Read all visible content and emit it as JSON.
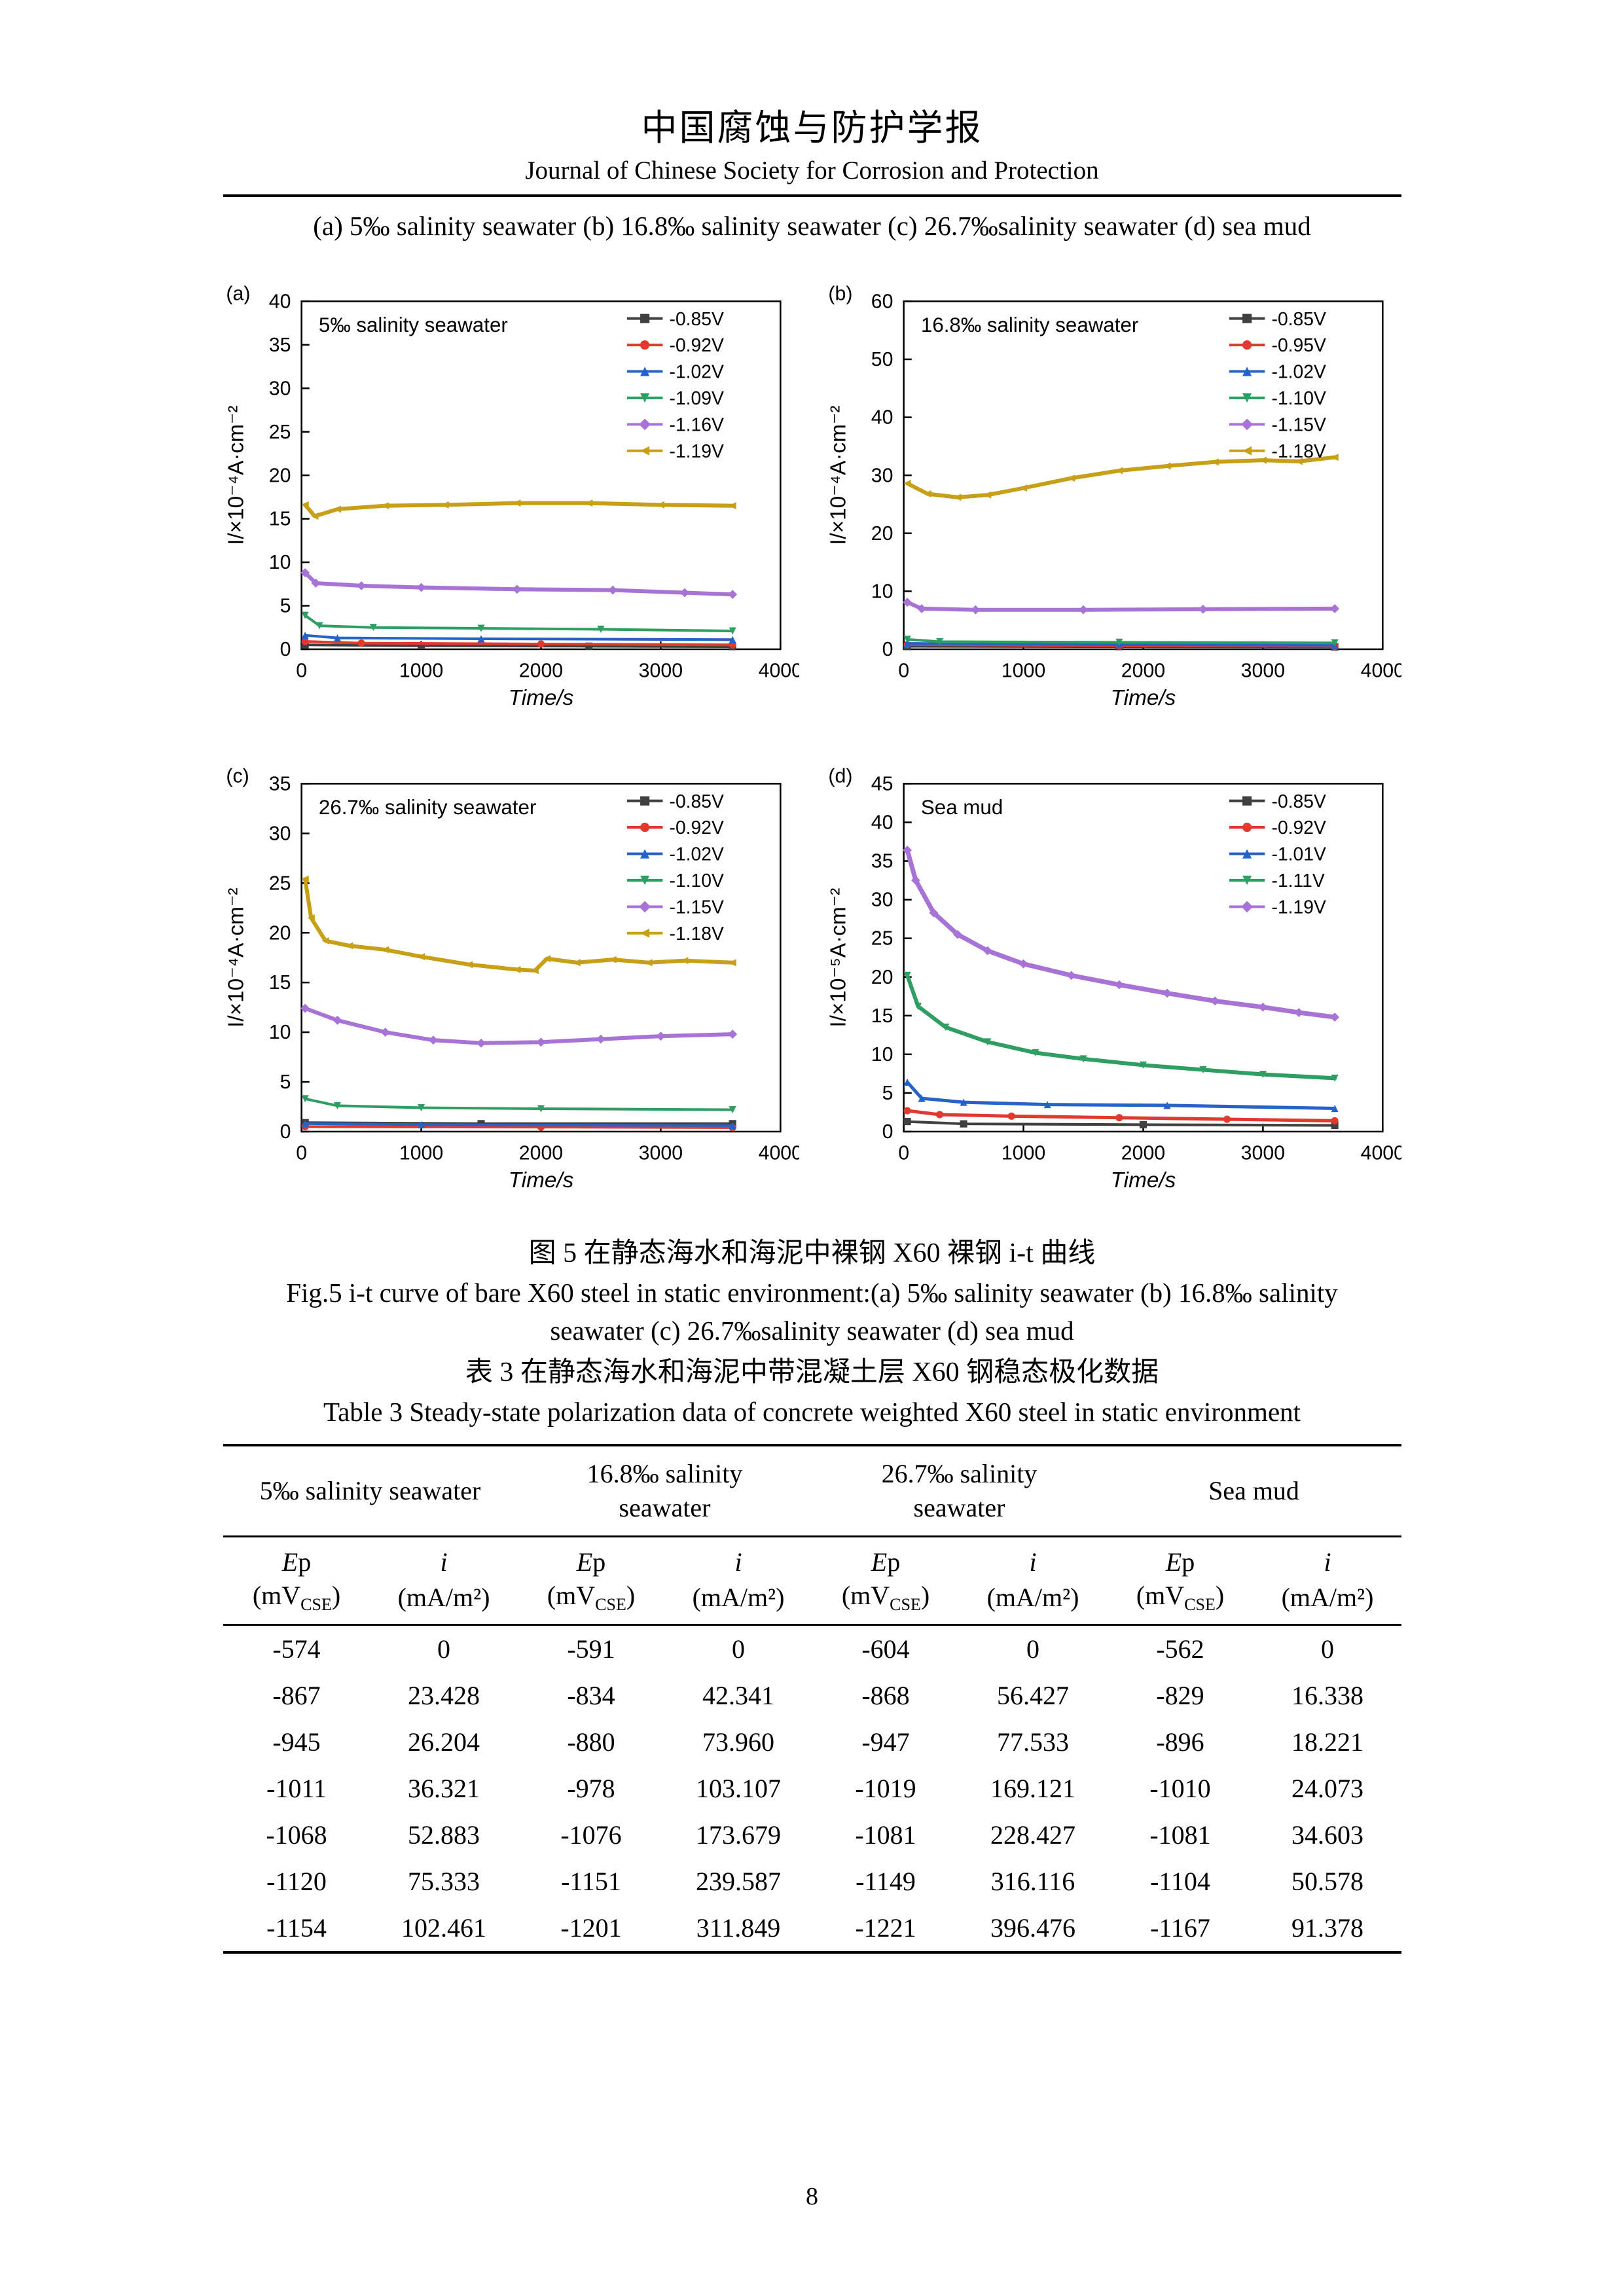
{
  "header": {
    "journal_title_cn": "中国腐蚀与防护学报",
    "journal_title_en": "Journal of Chinese Society for Corrosion and Protection",
    "panel_caption": "(a) 5‰ salinity seawater (b) 16.8‰ salinity seawater (c) 26.7‰salinity seawater (d) sea mud"
  },
  "figure": {
    "caption_cn": "图 5 在静态海水和海泥中裸钢 X60 裸钢 i-t 曲线",
    "caption_en_line1": "Fig.5 i-t curve of bare X60 steel in static environment:(a) 5‰ salinity seawater (b) 16.8‰ salinity",
    "caption_en_line2": "seawater (c) 26.7‰salinity seawater (d) sea mud"
  },
  "table": {
    "caption_cn": "表 3 在静态海水和海泥中带混凝土层 X60 钢稳态极化数据",
    "caption_en": "Table 3 Steady-state polarization data of concrete weighted X60 steel in static environment",
    "groups": [
      "5‰ salinity seawater",
      "16.8‰ salinity\nseawater",
      "26.7‰ salinity\nseawater",
      "Sea mud"
    ],
    "sym_ep_main": "E",
    "sym_ep_rest": "p",
    "sym_i": "i",
    "unit_ep_pre": "(mV",
    "unit_ep_sub": "CSE",
    "unit_ep_post": ")",
    "unit_i": "(mA/m²)",
    "rows": [
      [
        "-574",
        "0",
        "-591",
        "0",
        "-604",
        "0",
        "-562",
        "0"
      ],
      [
        "-867",
        "23.428",
        "-834",
        "42.341",
        "-868",
        "56.427",
        "-829",
        "16.338"
      ],
      [
        "-945",
        "26.204",
        "-880",
        "73.960",
        "-947",
        "77.533",
        "-896",
        "18.221"
      ],
      [
        "-1011",
        "36.321",
        "-978",
        "103.107",
        "-1019",
        "169.121",
        "-1010",
        "24.073"
      ],
      [
        "-1068",
        "52.883",
        "-1076",
        "173.679",
        "-1081",
        "228.427",
        "-1081",
        "34.603"
      ],
      [
        "-1120",
        "75.333",
        "-1151",
        "239.587",
        "-1149",
        "316.116",
        "-1104",
        "50.578"
      ],
      [
        "-1154",
        "102.461",
        "-1201",
        "311.849",
        "-1221",
        "396.476",
        "-1167",
        "91.378"
      ]
    ]
  },
  "page_number": "8",
  "chart_data": [
    {
      "type": "line",
      "panel": "(a)",
      "title": "5‰ salinity seawater",
      "xlabel": "Time/s",
      "ylabel": "I/×10⁻⁴A·cm⁻²",
      "xlim": [
        0,
        4000
      ],
      "xticks": [
        0,
        1000,
        2000,
        3000,
        4000
      ],
      "ylim": [
        0,
        40
      ],
      "yticks": [
        0,
        5,
        10,
        15,
        20,
        25,
        30,
        35,
        40
      ],
      "legend_position": "top-right",
      "series": [
        {
          "name": "-0.85V",
          "color": "#404040",
          "marker": "square",
          "lw": 4,
          "points": [
            [
              30,
              0.5
            ],
            [
              1000,
              0.4
            ],
            [
              2400,
              0.35
            ],
            [
              3600,
              0.3
            ]
          ]
        },
        {
          "name": "-0.92V",
          "color": "#e03a2f",
          "marker": "circle",
          "lw": 4,
          "points": [
            [
              30,
              0.9
            ],
            [
              500,
              0.7
            ],
            [
              2000,
              0.6
            ],
            [
              3600,
              0.5
            ]
          ]
        },
        {
          "name": "-1.02V",
          "color": "#2563c9",
          "marker": "triangle",
          "lw": 4,
          "points": [
            [
              30,
              1.6
            ],
            [
              300,
              1.3
            ],
            [
              1500,
              1.2
            ],
            [
              3600,
              1.1
            ]
          ]
        },
        {
          "name": "-1.09V",
          "color": "#2f9e62",
          "marker": "triangle-down",
          "lw": 4,
          "points": [
            [
              30,
              3.9
            ],
            [
              150,
              2.7
            ],
            [
              600,
              2.5
            ],
            [
              1500,
              2.4
            ],
            [
              2500,
              2.3
            ],
            [
              3600,
              2.1
            ]
          ]
        },
        {
          "name": "-1.16V",
          "color": "#a873d6",
          "marker": "diamond",
          "lw": 6,
          "points": [
            [
              30,
              8.8
            ],
            [
              120,
              7.6
            ],
            [
              500,
              7.3
            ],
            [
              1000,
              7.1
            ],
            [
              1800,
              6.9
            ],
            [
              2600,
              6.8
            ],
            [
              3200,
              6.5
            ],
            [
              3600,
              6.3
            ]
          ]
        },
        {
          "name": "-1.19V",
          "color": "#c7a018",
          "marker": "triangle-left",
          "lw": 6,
          "points": [
            [
              30,
              16.6
            ],
            [
              110,
              15.3
            ],
            [
              300,
              16.1
            ],
            [
              700,
              16.5
            ],
            [
              1200,
              16.6
            ],
            [
              1800,
              16.8
            ],
            [
              2400,
              16.8
            ],
            [
              3000,
              16.6
            ],
            [
              3600,
              16.5
            ]
          ]
        }
      ]
    },
    {
      "type": "line",
      "panel": "(b)",
      "title": "16.8‰ salinity seawater",
      "xlabel": "Time/s",
      "ylabel": "I/×10⁻⁴A·cm⁻²",
      "xlim": [
        0,
        4000
      ],
      "xticks": [
        0,
        1000,
        2000,
        3000,
        4000
      ],
      "ylim": [
        0,
        60
      ],
      "yticks": [
        0,
        10,
        20,
        30,
        40,
        50,
        60
      ],
      "legend_position": "top-right",
      "series": [
        {
          "name": "-0.85V",
          "color": "#404040",
          "marker": "square",
          "lw": 4,
          "points": [
            [
              30,
              0.5
            ],
            [
              1800,
              0.45
            ],
            [
              3600,
              0.4
            ]
          ]
        },
        {
          "name": "-0.95V",
          "color": "#e03a2f",
          "marker": "circle",
          "lw": 4,
          "points": [
            [
              30,
              0.8
            ],
            [
              1800,
              0.6
            ],
            [
              3600,
              0.5
            ]
          ]
        },
        {
          "name": "-1.02V",
          "color": "#2563c9",
          "marker": "triangle",
          "lw": 4,
          "points": [
            [
              30,
              1.0
            ],
            [
              1800,
              0.8
            ],
            [
              3600,
              0.7
            ]
          ]
        },
        {
          "name": "-1.10V",
          "color": "#2f9e62",
          "marker": "triangle-down",
          "lw": 4,
          "points": [
            [
              30,
              1.7
            ],
            [
              300,
              1.3
            ],
            [
              1800,
              1.2
            ],
            [
              3600,
              1.1
            ]
          ]
        },
        {
          "name": "-1.15V",
          "color": "#a873d6",
          "marker": "diamond",
          "lw": 6,
          "points": [
            [
              30,
              8.1
            ],
            [
              150,
              7.0
            ],
            [
              600,
              6.8
            ],
            [
              1500,
              6.8
            ],
            [
              2500,
              6.9
            ],
            [
              3600,
              7.0
            ]
          ]
        },
        {
          "name": "-1.18V",
          "color": "#c7a018",
          "marker": "triangle-left",
          "lw": 6,
          "points": [
            [
              30,
              28.6
            ],
            [
              200,
              26.8
            ],
            [
              450,
              26.2
            ],
            [
              700,
              26.6
            ],
            [
              1000,
              27.8
            ],
            [
              1400,
              29.5
            ],
            [
              1800,
              30.8
            ],
            [
              2200,
              31.6
            ],
            [
              2600,
              32.3
            ],
            [
              3000,
              32.6
            ],
            [
              3300,
              32.4
            ],
            [
              3600,
              33.1
            ]
          ]
        }
      ]
    },
    {
      "type": "line",
      "panel": "(c)",
      "title": "26.7‰ salinity seawater",
      "xlabel": "Time/s",
      "ylabel": "I/×10⁻⁴A·cm⁻²",
      "xlim": [
        0,
        4000
      ],
      "xticks": [
        0,
        1000,
        2000,
        3000,
        4000
      ],
      "ylim": [
        0,
        35
      ],
      "yticks": [
        0,
        5,
        10,
        15,
        20,
        25,
        30,
        35
      ],
      "legend_position": "top-right",
      "series": [
        {
          "name": "-0.85V",
          "color": "#404040",
          "marker": "square",
          "lw": 4,
          "points": [
            [
              30,
              0.9
            ],
            [
              1500,
              0.8
            ],
            [
              3600,
              0.8
            ]
          ]
        },
        {
          "name": "-0.92V",
          "color": "#e03a2f",
          "marker": "circle",
          "lw": 4,
          "points": [
            [
              30,
              0.5
            ],
            [
              2000,
              0.45
            ],
            [
              3600,
              0.4
            ]
          ]
        },
        {
          "name": "-1.02V",
          "color": "#2563c9",
          "marker": "triangle",
          "lw": 4,
          "points": [
            [
              30,
              0.8
            ],
            [
              1000,
              0.7
            ],
            [
              3600,
              0.6
            ]
          ]
        },
        {
          "name": "-1.10V",
          "color": "#2f9e62",
          "marker": "triangle-down",
          "lw": 4,
          "points": [
            [
              30,
              3.3
            ],
            [
              300,
              2.6
            ],
            [
              1000,
              2.4
            ],
            [
              2000,
              2.3
            ],
            [
              3600,
              2.2
            ]
          ]
        },
        {
          "name": "-1.15V",
          "color": "#a873d6",
          "marker": "diamond",
          "lw": 6,
          "points": [
            [
              30,
              12.4
            ],
            [
              300,
              11.2
            ],
            [
              700,
              10.0
            ],
            [
              1100,
              9.2
            ],
            [
              1500,
              8.9
            ],
            [
              2000,
              9.0
            ],
            [
              2500,
              9.3
            ],
            [
              3000,
              9.6
            ],
            [
              3600,
              9.8
            ]
          ]
        },
        {
          "name": "-1.18V",
          "color": "#c7a018",
          "marker": "triangle-left",
          "lw": 6,
          "points": [
            [
              30,
              25.4
            ],
            [
              80,
              21.5
            ],
            [
              200,
              19.2
            ],
            [
              400,
              18.7
            ],
            [
              700,
              18.3
            ],
            [
              1000,
              17.6
            ],
            [
              1400,
              16.8
            ],
            [
              1800,
              16.3
            ],
            [
              1950,
              16.2
            ],
            [
              2050,
              17.4
            ],
            [
              2300,
              17.0
            ],
            [
              2600,
              17.3
            ],
            [
              2900,
              17.0
            ],
            [
              3200,
              17.2
            ],
            [
              3600,
              17.0
            ]
          ]
        }
      ]
    },
    {
      "type": "line",
      "panel": "(d)",
      "title": "Sea mud",
      "xlabel": "Time/s",
      "ylabel": "I/×10⁻⁵A·cm⁻²",
      "xlim": [
        0,
        4000
      ],
      "xticks": [
        0,
        1000,
        2000,
        3000,
        4000
      ],
      "ylim": [
        0,
        45
      ],
      "yticks": [
        0,
        5,
        10,
        15,
        20,
        25,
        30,
        35,
        40,
        45
      ],
      "legend_position": "top-right",
      "series": [
        {
          "name": "-0.85V",
          "color": "#404040",
          "marker": "square",
          "lw": 4,
          "points": [
            [
              30,
              1.3
            ],
            [
              500,
              1.0
            ],
            [
              2000,
              0.9
            ],
            [
              3600,
              0.8
            ]
          ]
        },
        {
          "name": "-0.92V",
          "color": "#e03a2f",
          "marker": "circle",
          "lw": 5,
          "points": [
            [
              30,
              2.7
            ],
            [
              300,
              2.2
            ],
            [
              900,
              2.0
            ],
            [
              1800,
              1.8
            ],
            [
              2700,
              1.6
            ],
            [
              3600,
              1.4
            ]
          ]
        },
        {
          "name": "-1.01V",
          "color": "#2563c9",
          "marker": "triangle",
          "lw": 5,
          "points": [
            [
              30,
              6.4
            ],
            [
              150,
              4.3
            ],
            [
              500,
              3.8
            ],
            [
              1200,
              3.5
            ],
            [
              2200,
              3.4
            ],
            [
              3600,
              3.0
            ]
          ]
        },
        {
          "name": "-1.11V",
          "color": "#2f9e62",
          "marker": "triangle-down",
          "lw": 6,
          "points": [
            [
              30,
              20.2
            ],
            [
              120,
              16.2
            ],
            [
              350,
              13.5
            ],
            [
              700,
              11.6
            ],
            [
              1100,
              10.2
            ],
            [
              1500,
              9.4
            ],
            [
              2000,
              8.6
            ],
            [
              2500,
              8.0
            ],
            [
              3000,
              7.4
            ],
            [
              3600,
              6.9
            ]
          ]
        },
        {
          "name": "-1.19V",
          "color": "#a873d6",
          "marker": "diamond",
          "lw": 7,
          "points": [
            [
              30,
              36.4
            ],
            [
              100,
              32.5
            ],
            [
              250,
              28.3
            ],
            [
              450,
              25.5
            ],
            [
              700,
              23.4
            ],
            [
              1000,
              21.7
            ],
            [
              1400,
              20.2
            ],
            [
              1800,
              19.0
            ],
            [
              2200,
              17.9
            ],
            [
              2600,
              16.9
            ],
            [
              3000,
              16.1
            ],
            [
              3300,
              15.4
            ],
            [
              3600,
              14.8
            ]
          ]
        }
      ]
    }
  ]
}
